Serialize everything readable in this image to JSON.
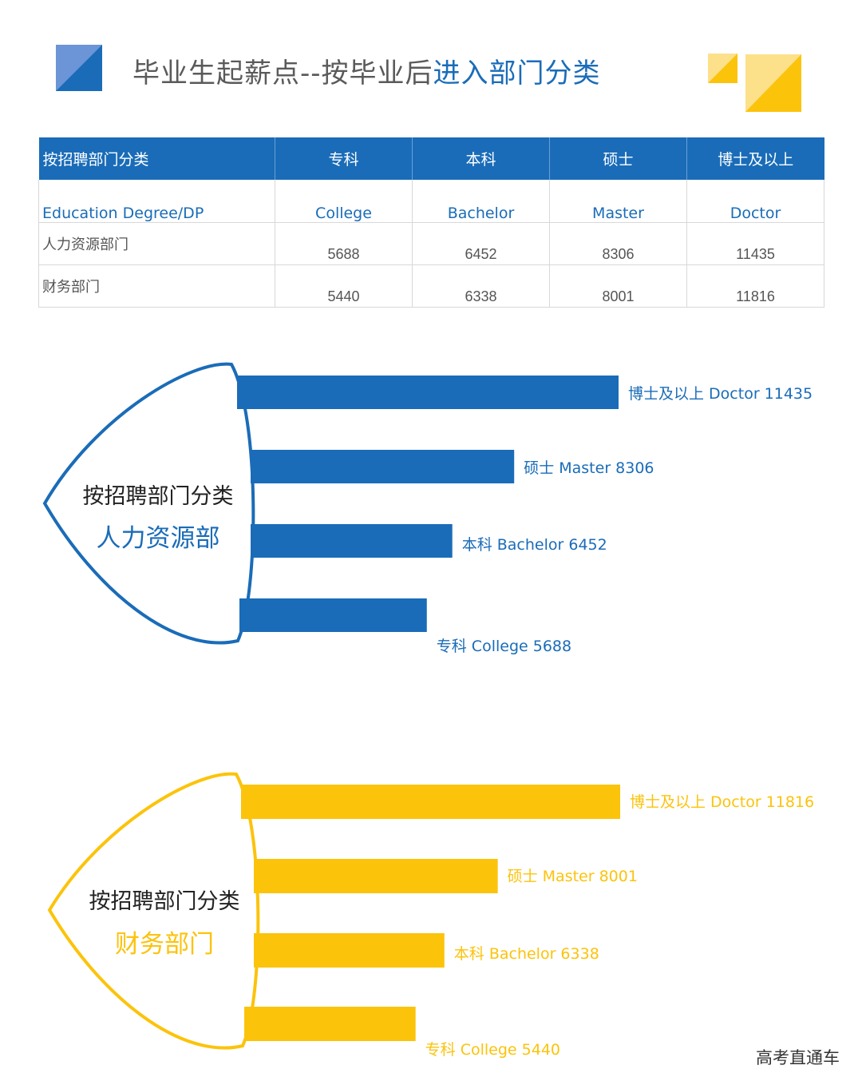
{
  "title": {
    "main": "毕业生起薪点--按毕业后",
    "highlight": "进入部门分类"
  },
  "colors": {
    "blue": "#1a6cb8",
    "yellow": "#fcc30b",
    "yellow_light": "#fde08a",
    "gray_text": "#5a5a5a"
  },
  "table": {
    "header": [
      "按招聘部门分类",
      "专科",
      "本科",
      "硕士",
      "博士及以上"
    ],
    "degree_row": [
      "Education  Degree/DP",
      "College",
      "Bachelor",
      "Master",
      "Doctor"
    ],
    "rows": [
      {
        "dept": "人力资源部门",
        "values": [
          "5688",
          "6452",
          "8306",
          "11435"
        ]
      },
      {
        "dept": "财务部门",
        "values": [
          "5440",
          "6338",
          "8001",
          "11816"
        ]
      }
    ]
  },
  "chart_data": [
    {
      "type": "bar",
      "heading": "按招聘部门分类",
      "subheading": "人力资源部",
      "color": "#1a6cb8",
      "bars": [
        {
          "label": "博士及以上 Doctor 11435",
          "value": 11435
        },
        {
          "label": "硕士 Master 8306",
          "value": 8306
        },
        {
          "label": "本科 Bachelor 6452",
          "value": 6452
        },
        {
          "label": "专科 College 5688",
          "value": 5688
        }
      ]
    },
    {
      "type": "bar",
      "heading": "按招聘部门分类",
      "subheading": "财务部门",
      "color": "#fcc30b",
      "bars": [
        {
          "label": "博士及以上 Doctor 11816",
          "value": 11816
        },
        {
          "label": "硕士 Master 8001",
          "value": 8001
        },
        {
          "label": "本科 Bachelor 6338",
          "value": 6338
        },
        {
          "label": "专科 College 5440",
          "value": 5440
        }
      ]
    }
  ],
  "watermark": "高考直通车"
}
